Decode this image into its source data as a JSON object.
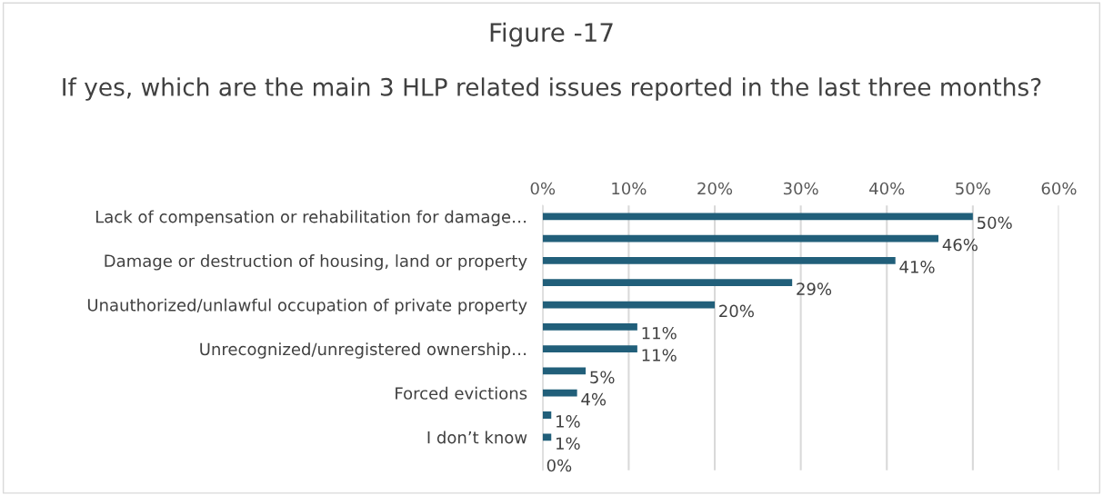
{
  "chart_data": {
    "type": "bar",
    "orientation": "horizontal",
    "title": "Figure -17",
    "subtitle": "If yes, which are the main 3 HLP related issues reported in the last three months?",
    "categories": [
      "Lack of compensation or rehabilitation for damage…",
      null,
      "Damage or destruction of housing, land or property",
      null,
      "Unauthorized/unlawful occupation of private property",
      null,
      "Unrecognized/unregistered ownership…",
      null,
      "Forced evictions",
      null,
      "I don’t know",
      null
    ],
    "values": [
      50,
      46,
      41,
      29,
      20,
      11,
      11,
      5,
      4,
      1,
      1,
      0
    ],
    "value_labels": [
      "50%",
      "46%",
      "41%",
      "29%",
      "20%",
      "11%",
      "11%",
      "5%",
      "4%",
      "1%",
      "1%",
      "0%"
    ],
    "color": "#215f7a",
    "xlim": [
      0,
      60
    ],
    "xticks": [
      {
        "value": 0,
        "label": "0%"
      },
      {
        "value": 10,
        "label": "10%"
      },
      {
        "value": 20,
        "label": "20%"
      },
      {
        "value": 30,
        "label": "30%"
      },
      {
        "value": 40,
        "label": "40%"
      },
      {
        "value": 50,
        "label": "50%"
      },
      {
        "value": 60,
        "label": "60%"
      }
    ],
    "grid": "x"
  }
}
